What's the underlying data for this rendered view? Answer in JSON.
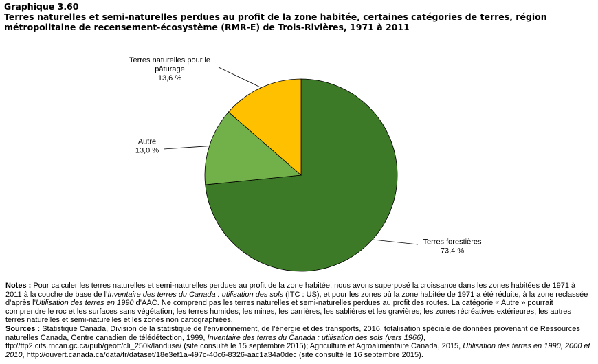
{
  "header": {
    "label": "Graphique 3.60",
    "title": "Terres naturelles et semi-naturelles perdues au profit de la zone habitée, certaines catégories de terres, région métropolitaine de recensement-écosystème (RMR-E) de Trois-Rivières, 1971 à 2011"
  },
  "chart_data": {
    "type": "pie",
    "title": "Terres naturelles et semi-naturelles perdues au profit de la zone habitée, certaines catégories de terres, région métropolitaine de recensement-écosystème (RMR-E) de Trois-Rivières, 1971 à 2011",
    "slices": [
      {
        "label_lines": [
          "Terres forestières"
        ],
        "value_label": "73,4 %",
        "value": 73.4,
        "color": "#3d7a27"
      },
      {
        "label_lines": [
          "Autre"
        ],
        "value_label": "13,0 %",
        "value": 13.0,
        "color": "#72b04a"
      },
      {
        "label_lines": [
          "Terres naturelles pour le",
          "pâturage"
        ],
        "value_label": "13,6 %",
        "value": 13.6,
        "color": "#ffc000"
      }
    ],
    "start_angle": "12 o'clock",
    "direction": "clockwise",
    "legend": "none, labels beside slices"
  },
  "notes": {
    "notes_label": "Notes :",
    "notes_text": " Pour calculer les terres naturelles et semi-naturelles perdues au profit de la zone habitée, nous avons superposé la croissance dans les zones habitées de 1971 à 2011 à la couche de base de l’",
    "notes_italic_1": "Inventaire des terres du Canada : utilisation des sols",
    "notes_text_2": " (ITC : US), et pour les zones où la zone habitée de 1971 a été réduite, à la zone reclassée d’après l’",
    "notes_italic_2": "Utilisation des terres en 1990",
    "notes_text_3": " d’AAC. Ne comprend pas les terres naturelles et semi-naturelles perdues au profit des routes. La catégorie « Autre » pourrait comprendre le roc et les surfaces sans végétation; les terres humides; les mines, les carrières, les sablières et les gravières; les zones récréatives extérieures; les autres terres naturelles et semi-naturelles et les zones non cartographiées.",
    "sources_label": "Sources :",
    "sources_text": " Statistique Canada, Division de la statistique de l’environnement, de l’énergie et des transports, 2016, totalisation spéciale de données provenant de Ressources naturelles Canada, Centre canadien de télédétection, 1999, ",
    "sources_italic_1": "Inventaire des terres du Canada : utilisation des sols (vers 1966)",
    "sources_text_2": ", ftp://ftp2.cits.rncan.gc.ca/pub/geott/cli_250k/landuse/ (site consulté le 15 septembre 2015); Agriculture et Agroalimentaire Canada, 2015, ",
    "sources_italic_2": "Utilisation des terres en 1990, 2000 et 2010",
    "sources_text_3": ", http://ouvert.canada.ca/data/fr/dataset/18e3ef1a-497c-40c6-8326-aac1a34a0dec (site consulté le 16 septembre 2015)."
  }
}
